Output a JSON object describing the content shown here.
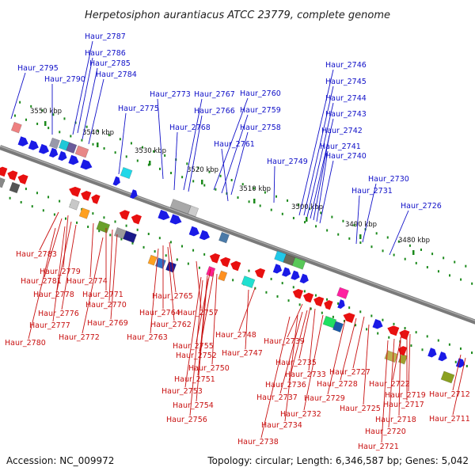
{
  "title": "Herpetosiphon aurantiacus ATCC 23779, complete genome",
  "footer": {
    "accession": "Accession: NC_009972",
    "summary": "Topology: circular; Length: 6,346,587 bp; Genes: 5,042"
  },
  "colors": {
    "backbone": "#7a7a7a",
    "plus_strand_gene": "#1a1ae6",
    "minus_strand_gene": "#e81010",
    "tick": "#1c8a1c",
    "label_top": "#1010c8",
    "label_bottom": "#c81010"
  },
  "scale_labels": [
    {
      "text": "3550 kbp",
      "kbp": 3550
    },
    {
      "text": "3540 kbp",
      "kbp": 3540
    },
    {
      "text": "3530 kbp",
      "kbp": 3530
    },
    {
      "text": "3520 kbp",
      "kbp": 3520
    },
    {
      "text": "3510 kbp",
      "kbp": 3510
    },
    {
      "text": "3500 kbp",
      "kbp": 3500
    },
    {
      "text": "3490 kbp",
      "kbp": 3490
    },
    {
      "text": "3480 kbp",
      "kbp": 3480
    }
  ],
  "top_labels": [
    "Haur_2787",
    "Haur_2786",
    "Haur_2785",
    "Haur_2795",
    "Haur_2790",
    "Haur_2784",
    "Haur_2775",
    "Haur_2773",
    "Haur_2767",
    "Haur_2760",
    "Haur_2766",
    "Haur_2759",
    "Haur_2768",
    "Haur_2758",
    "Haur_2761",
    "Haur_2749",
    "Haur_2746",
    "Haur_2745",
    "Haur_2744",
    "Haur_2743",
    "Haur_2742",
    "Haur_2741",
    "Haur_2740",
    "Haur_2730",
    "Haur_2731",
    "Haur_2726"
  ],
  "bottom_labels": [
    "Haur_2783",
    "Haur_2779",
    "Haur_2781",
    "Haur_2774",
    "Haur_2778",
    "Haur_2771",
    "Haur_2770",
    "Haur_2776",
    "Haur_2777",
    "Haur_2769",
    "Haur_2780",
    "Haur_2772",
    "Haur_2765",
    "Haur_2764",
    "Haur_2762",
    "Haur_2763",
    "Haur_2757",
    "Haur_2748",
    "Haur_2755",
    "Haur_2752",
    "Haur_2747",
    "Haur_2750",
    "Haur_2751",
    "Haur_2753",
    "Haur_2754",
    "Haur_2756",
    "Haur_2739",
    "Haur_2735",
    "Haur_2733",
    "Haur_2736",
    "Haur_2737",
    "Haur_2732",
    "Haur_2734",
    "Haur_2738",
    "Haur_2727",
    "Haur_2728",
    "Haur_2729",
    "Haur_2725",
    "Haur_2722",
    "Haur_2719",
    "Haur_2717",
    "Haur_2718",
    "Haur_2720",
    "Haur_2721",
    "Haur_2712",
    "Haur_2711"
  ]
}
